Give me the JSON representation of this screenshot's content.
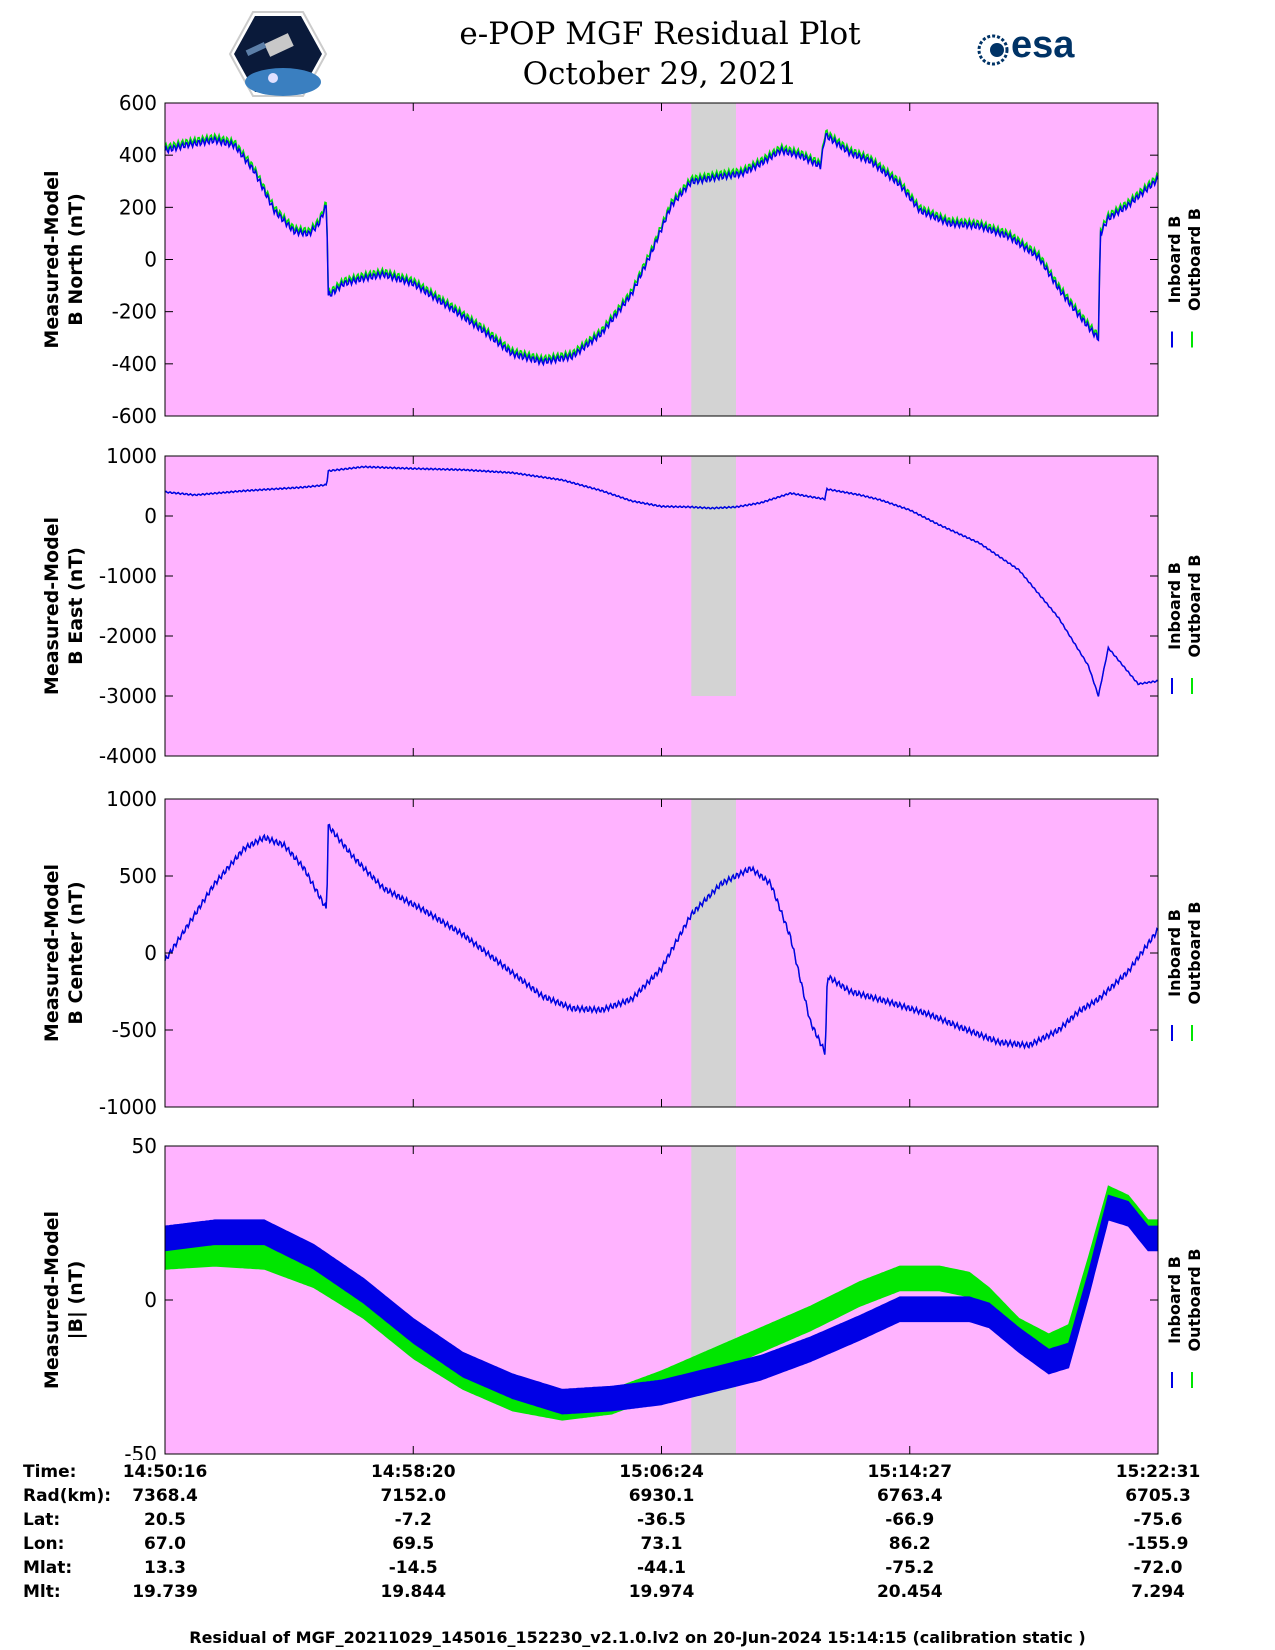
{
  "title": {
    "line1": "e-POP MGF Residual Plot",
    "line2": "October 29, 2021"
  },
  "logos": {
    "left": "cassiope-satellite-logo",
    "right_text": "esa"
  },
  "legend": {
    "inboard": "Inboard B",
    "outboard": "Outboard B"
  },
  "colors": {
    "background": "#ffb3ff",
    "gap": "#d3d3d3",
    "inboard": "#0000e6",
    "outboard": "#00e600"
  },
  "chart_data": [
    {
      "type": "line",
      "ylabel_line1": "Measured-Model",
      "ylabel_line2": "B North (nT)",
      "ylim": [
        -600,
        600
      ],
      "yticks": [
        "600",
        "400",
        "200",
        "0",
        "-200",
        "-400",
        "-600"
      ],
      "gap_x": [
        0.53,
        0.575
      ],
      "series": [
        {
          "name": "Outboard B",
          "offset": 12,
          "ripple": 12,
          "points": [
            [
              0,
              430
            ],
            [
              0.02,
              450
            ],
            [
              0.05,
              470
            ],
            [
              0.07,
              450
            ],
            [
              0.09,
              350
            ],
            [
              0.11,
              200
            ],
            [
              0.13,
              120
            ],
            [
              0.145,
              110
            ],
            [
              0.155,
              150
            ],
            [
              0.163,
              225
            ],
            [
              0.164,
              -130
            ],
            [
              0.18,
              -80
            ],
            [
              0.2,
              -60
            ],
            [
              0.22,
              -45
            ],
            [
              0.25,
              -80
            ],
            [
              0.29,
              -180
            ],
            [
              0.32,
              -260
            ],
            [
              0.35,
              -350
            ],
            [
              0.38,
              -380
            ],
            [
              0.41,
              -360
            ],
            [
              0.44,
              -270
            ],
            [
              0.47,
              -120
            ],
            [
              0.49,
              40
            ],
            [
              0.51,
              220
            ],
            [
              0.53,
              310
            ],
            [
              0.56,
              330
            ],
            [
              0.58,
              340
            ],
            [
              0.6,
              380
            ],
            [
              0.62,
              430
            ],
            [
              0.64,
              410
            ],
            [
              0.66,
              370
            ],
            [
              0.665,
              490
            ],
            [
              0.69,
              420
            ],
            [
              0.71,
              390
            ],
            [
              0.74,
              300
            ],
            [
              0.76,
              200
            ],
            [
              0.79,
              150
            ],
            [
              0.82,
              140
            ],
            [
              0.85,
              100
            ],
            [
              0.88,
              20
            ],
            [
              0.9,
              -100
            ],
            [
              0.92,
              -200
            ],
            [
              0.935,
              -270
            ],
            [
              0.94,
              -290
            ],
            [
              0.942,
              110
            ],
            [
              0.95,
              170
            ],
            [
              0.97,
              220
            ],
            [
              1.0,
              320
            ]
          ]
        }
      ]
    },
    {
      "type": "line",
      "ylabel_line1": "Measured-Model",
      "ylabel_line2": "B East (nT)",
      "ylim": [
        -4000,
        1000
      ],
      "yticks": [
        "1000",
        "0",
        "-1000",
        "-2000",
        "-3000",
        "-4000"
      ],
      "gap_x": [
        0.53,
        0.575
      ],
      "gap_ylim": [
        -3000,
        1000
      ],
      "series": [
        {
          "name": "Inboard B",
          "offset": 0,
          "ripple": 12,
          "points": [
            [
              0,
              400
            ],
            [
              0.03,
              350
            ],
            [
              0.08,
              420
            ],
            [
              0.14,
              480
            ],
            [
              0.163,
              520
            ],
            [
              0.164,
              750
            ],
            [
              0.2,
              820
            ],
            [
              0.25,
              790
            ],
            [
              0.3,
              770
            ],
            [
              0.35,
              720
            ],
            [
              0.4,
              600
            ],
            [
              0.44,
              420
            ],
            [
              0.47,
              250
            ],
            [
              0.5,
              160
            ],
            [
              0.53,
              150
            ],
            [
              0.55,
              130
            ],
            [
              0.575,
              150
            ],
            [
              0.6,
              220
            ],
            [
              0.63,
              380
            ],
            [
              0.65,
              320
            ],
            [
              0.665,
              280
            ],
            [
              0.666,
              450
            ],
            [
              0.7,
              350
            ],
            [
              0.72,
              270
            ],
            [
              0.75,
              100
            ],
            [
              0.78,
              -150
            ],
            [
              0.82,
              -450
            ],
            [
              0.86,
              -900
            ],
            [
              0.9,
              -1700
            ],
            [
              0.93,
              -2500
            ],
            [
              0.94,
              -3000
            ],
            [
              0.95,
              -2200
            ],
            [
              0.96,
              -2400
            ],
            [
              0.98,
              -2800
            ],
            [
              1.0,
              -2750
            ]
          ]
        }
      ]
    },
    {
      "type": "line",
      "ylabel_line1": "Measured-Model",
      "ylabel_line2": "B Center (nT)",
      "ylim": [
        -1000,
        1000
      ],
      "yticks": [
        "1000",
        "500",
        "0",
        "-500",
        "-1000"
      ],
      "gap_x": [
        0.53,
        0.575
      ],
      "series": [
        {
          "name": "Inboard B",
          "offset": 0,
          "ripple": 18,
          "points": [
            [
              0,
              -50
            ],
            [
              0.02,
              150
            ],
            [
              0.05,
              450
            ],
            [
              0.08,
              680
            ],
            [
              0.1,
              750
            ],
            [
              0.12,
              700
            ],
            [
              0.14,
              550
            ],
            [
              0.163,
              280
            ],
            [
              0.164,
              830
            ],
            [
              0.19,
              620
            ],
            [
              0.22,
              420
            ],
            [
              0.26,
              280
            ],
            [
              0.3,
              120
            ],
            [
              0.34,
              -80
            ],
            [
              0.38,
              -280
            ],
            [
              0.41,
              -360
            ],
            [
              0.44,
              -370
            ],
            [
              0.47,
              -300
            ],
            [
              0.5,
              -100
            ],
            [
              0.53,
              250
            ],
            [
              0.56,
              450
            ],
            [
              0.59,
              550
            ],
            [
              0.61,
              450
            ],
            [
              0.63,
              100
            ],
            [
              0.65,
              -450
            ],
            [
              0.665,
              -650
            ],
            [
              0.667,
              -150
            ],
            [
              0.69,
              -250
            ],
            [
              0.73,
              -320
            ],
            [
              0.77,
              -400
            ],
            [
              0.8,
              -480
            ],
            [
              0.84,
              -580
            ],
            [
              0.87,
              -600
            ],
            [
              0.9,
              -500
            ],
            [
              0.92,
              -380
            ],
            [
              0.94,
              -300
            ],
            [
              0.97,
              -120
            ],
            [
              1.0,
              150
            ]
          ]
        }
      ]
    },
    {
      "type": "line",
      "ylabel_line1": "Measured-Model",
      "ylabel_line2": "|B| (nT)",
      "ylim": [
        -50,
        50
      ],
      "yticks": [
        "50",
        "0",
        "-50"
      ],
      "gap_x": [
        0.53,
        0.575
      ],
      "series": [
        {
          "name": "Outboard B",
          "band": 4,
          "points": [
            [
              0,
              14
            ],
            [
              0.05,
              15
            ],
            [
              0.1,
              14
            ],
            [
              0.15,
              8
            ],
            [
              0.2,
              -2
            ],
            [
              0.25,
              -15
            ],
            [
              0.3,
              -25
            ],
            [
              0.35,
              -32
            ],
            [
              0.4,
              -35
            ],
            [
              0.45,
              -33
            ],
            [
              0.5,
              -27
            ],
            [
              0.55,
              -20
            ],
            [
              0.6,
              -13
            ],
            [
              0.65,
              -6
            ],
            [
              0.7,
              2
            ],
            [
              0.74,
              7
            ],
            [
              0.78,
              7
            ],
            [
              0.81,
              5
            ],
            [
              0.83,
              0
            ],
            [
              0.86,
              -10
            ],
            [
              0.89,
              -15
            ],
            [
              0.91,
              -12
            ],
            [
              0.93,
              10
            ],
            [
              0.95,
              33
            ],
            [
              0.97,
              30
            ],
            [
              0.99,
              22
            ],
            [
              1.0,
              22
            ]
          ]
        },
        {
          "name": "Inboard B",
          "band": 4,
          "points": [
            [
              0,
              20
            ],
            [
              0.05,
              22
            ],
            [
              0.1,
              22
            ],
            [
              0.15,
              14
            ],
            [
              0.2,
              3
            ],
            [
              0.25,
              -10
            ],
            [
              0.3,
              -21
            ],
            [
              0.35,
              -28
            ],
            [
              0.4,
              -33
            ],
            [
              0.45,
              -32
            ],
            [
              0.5,
              -30
            ],
            [
              0.55,
              -26
            ],
            [
              0.6,
              -22
            ],
            [
              0.65,
              -16
            ],
            [
              0.7,
              -9
            ],
            [
              0.74,
              -3
            ],
            [
              0.78,
              -3
            ],
            [
              0.81,
              -3
            ],
            [
              0.83,
              -5
            ],
            [
              0.86,
              -13
            ],
            [
              0.89,
              -20
            ],
            [
              0.91,
              -18
            ],
            [
              0.93,
              5
            ],
            [
              0.95,
              30
            ],
            [
              0.97,
              28
            ],
            [
              0.99,
              20
            ],
            [
              1.0,
              20
            ]
          ]
        }
      ]
    }
  ],
  "info_table": {
    "labels": [
      "Time:",
      "Rad(km):",
      "Lat:",
      "Lon:",
      "Mlat:",
      "Mlt:"
    ],
    "columns": [
      [
        "14:50:16",
        "7368.4",
        "20.5",
        "67.0",
        "13.3",
        "19.739"
      ],
      [
        "14:58:20",
        "7152.0",
        "-7.2",
        "69.5",
        "-14.5",
        "19.844"
      ],
      [
        "15:06:24",
        "6930.1",
        "-36.5",
        "73.1",
        "-44.1",
        "19.974"
      ],
      [
        "15:14:27",
        "6763.4",
        "-66.9",
        "86.2",
        "-75.2",
        "20.454"
      ],
      [
        "15:22:31",
        "6705.3",
        "-75.6",
        "-155.9",
        "-72.0",
        "7.294"
      ]
    ]
  },
  "footer": "Residual of MGF_20211029_145016_152230_v2.1.0.lv2 on 20-Jun-2024 15:14:15 (calibration static )"
}
